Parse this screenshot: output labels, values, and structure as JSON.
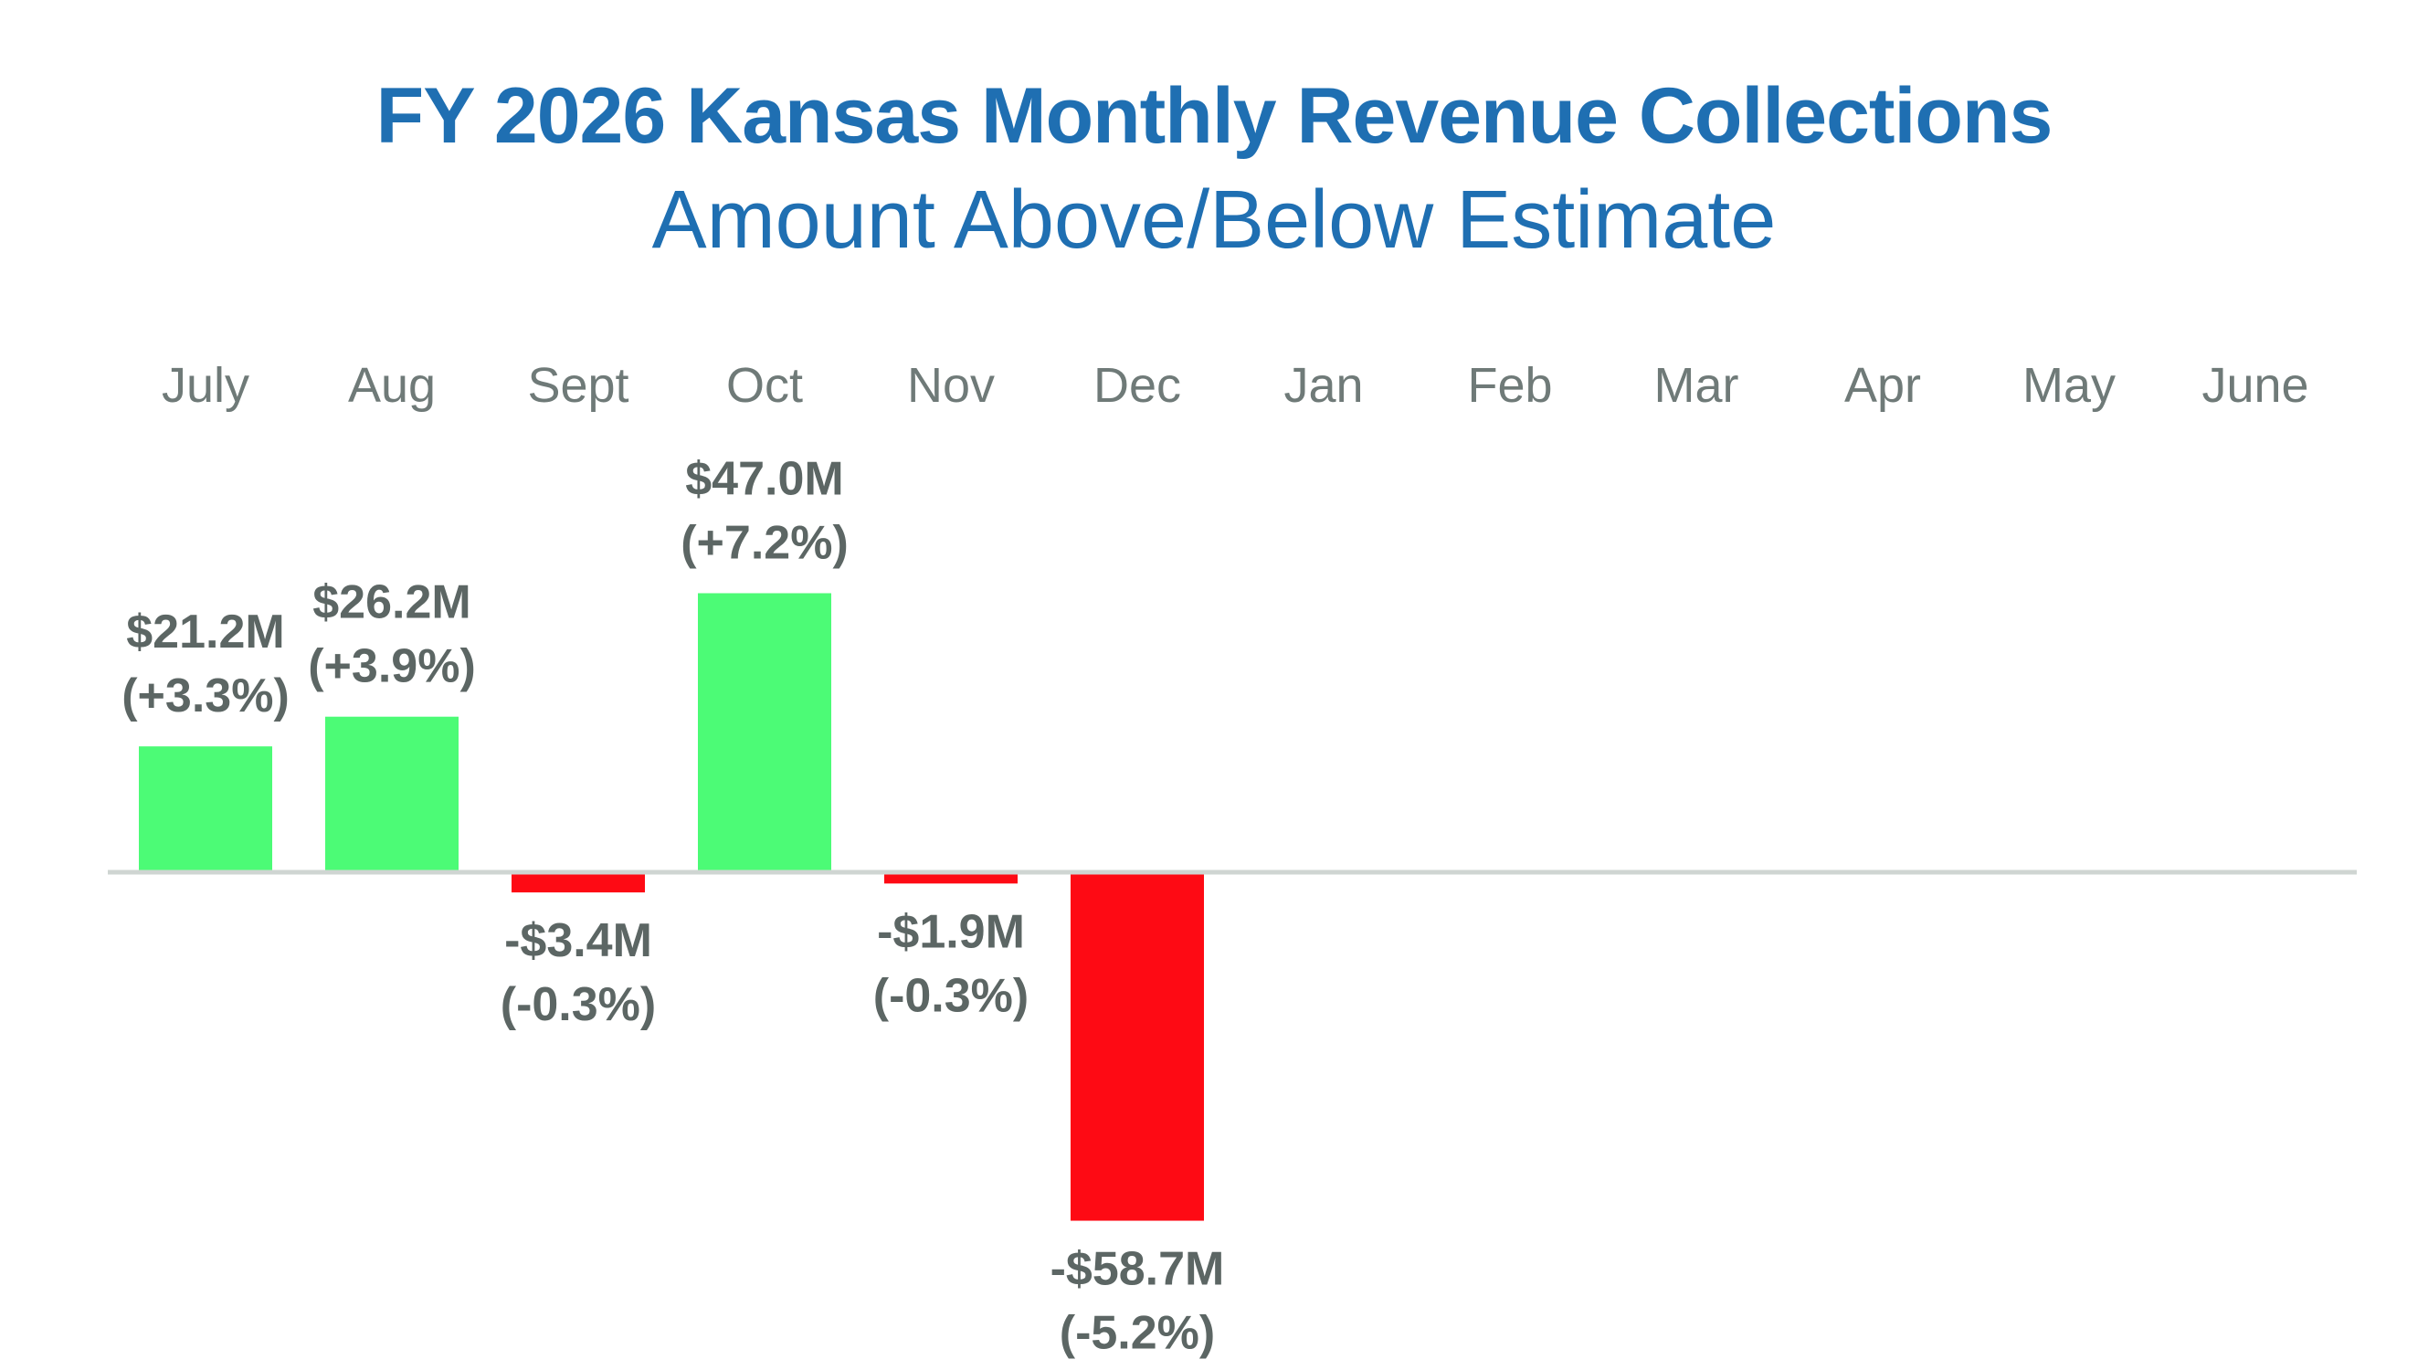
{
  "title": "FY 2026 Kansas Monthly Revenue Collections",
  "subtitle": "Amount Above/Below Estimate",
  "colors": {
    "title": "#1f6fb2",
    "positive_bar": "#4cfb76",
    "negative_bar": "#fe0a14",
    "axis_line": "#cfd5d2",
    "month_label": "#6f7a78",
    "value_label": "#5c6664"
  },
  "chart_data": {
    "type": "bar",
    "title": "FY 2026 Kansas Monthly Revenue Collections",
    "subtitle": "Amount Above/Below Estimate",
    "xlabel": "",
    "ylabel": "",
    "unit": "$M",
    "x_axis_position": "top",
    "grid": false,
    "ylim": [
      -60,
      50
    ],
    "categories": [
      "July",
      "Aug",
      "Sept",
      "Oct",
      "Nov",
      "Dec",
      "Jan",
      "Feb",
      "Mar",
      "Apr",
      "May",
      "June"
    ],
    "values": [
      21.2,
      26.2,
      -3.4,
      47.0,
      -1.9,
      -58.7,
      null,
      null,
      null,
      null,
      null,
      null
    ],
    "labels": [
      {
        "amount": "$21.2M",
        "percent": "(+3.3%)"
      },
      {
        "amount": "$26.2M",
        "percent": "(+3.9%)"
      },
      {
        "amount": "-$3.4M",
        "percent": "(-0.3%)"
      },
      {
        "amount": "$47.0M",
        "percent": "(+7.2%)"
      },
      {
        "amount": "-$1.9M",
        "percent": "(-0.3%)"
      },
      {
        "amount": "-$58.7M",
        "percent": "(-5.2%)"
      },
      null,
      null,
      null,
      null,
      null,
      null
    ]
  }
}
